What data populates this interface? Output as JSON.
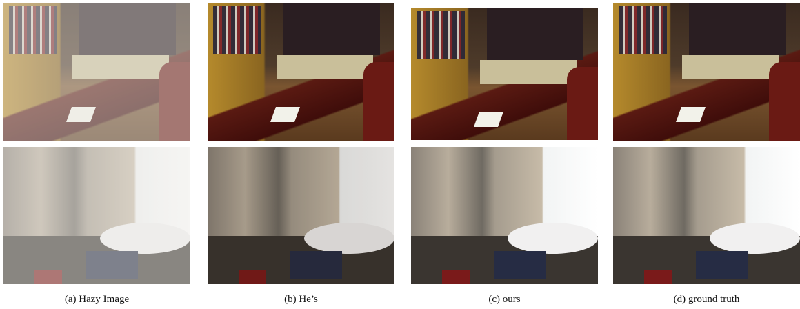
{
  "panels": [
    {
      "caption": "(a)  Hazy Image"
    },
    {
      "caption": "(b)  He’s"
    },
    {
      "caption": "(c)  ours"
    },
    {
      "caption": "(d)  ground truth"
    }
  ]
}
